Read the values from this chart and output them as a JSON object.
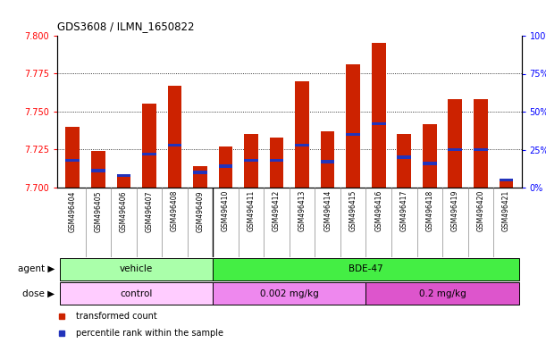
{
  "title": "GDS3608 / ILMN_1650822",
  "samples": [
    "GSM496404",
    "GSM496405",
    "GSM496406",
    "GSM496407",
    "GSM496408",
    "GSM496409",
    "GSM496410",
    "GSM496411",
    "GSM496412",
    "GSM496413",
    "GSM496414",
    "GSM496415",
    "GSM496416",
    "GSM496417",
    "GSM496418",
    "GSM496419",
    "GSM496420",
    "GSM496421"
  ],
  "bar_values": [
    7.74,
    7.724,
    7.707,
    7.755,
    7.767,
    7.714,
    7.727,
    7.735,
    7.733,
    7.77,
    7.737,
    7.781,
    7.795,
    7.735,
    7.742,
    7.758,
    7.758,
    7.706
  ],
  "percentile_values": [
    18,
    11,
    8,
    22,
    28,
    10,
    14,
    18,
    18,
    28,
    17,
    35,
    42,
    20,
    16,
    25,
    25,
    5
  ],
  "ymin": 7.7,
  "ymax": 7.8,
  "yright_min": 0,
  "yright_max": 100,
  "bar_color": "#cc2200",
  "blue_color": "#2233bb",
  "yticks_left": [
    7.7,
    7.725,
    7.75,
    7.775,
    7.8
  ],
  "yticks_right": [
    0,
    25,
    50,
    75,
    100
  ],
  "gridlines": [
    7.725,
    7.75,
    7.775
  ],
  "agent_groups": [
    {
      "label": "vehicle",
      "start": 0,
      "end": 6,
      "color": "#aaffaa"
    },
    {
      "label": "BDE-47",
      "start": 6,
      "end": 18,
      "color": "#44ee44"
    }
  ],
  "dose_groups": [
    {
      "label": "control",
      "start": 0,
      "end": 6,
      "color": "#ffccff"
    },
    {
      "label": "0.002 mg/kg",
      "start": 6,
      "end": 12,
      "color": "#ee88ee"
    },
    {
      "label": "0.2 mg/kg",
      "start": 12,
      "end": 18,
      "color": "#dd55cc"
    }
  ],
  "agent_label": "agent",
  "dose_label": "dose",
  "label_bg_color": "#cccccc",
  "label_sep_color": "#888888",
  "legend_items": [
    {
      "label": "transformed count",
      "color": "#cc2200"
    },
    {
      "label": "percentile rank within the sample",
      "color": "#2233bb"
    }
  ],
  "fig_width": 6.11,
  "fig_height": 3.84,
  "dpi": 100
}
